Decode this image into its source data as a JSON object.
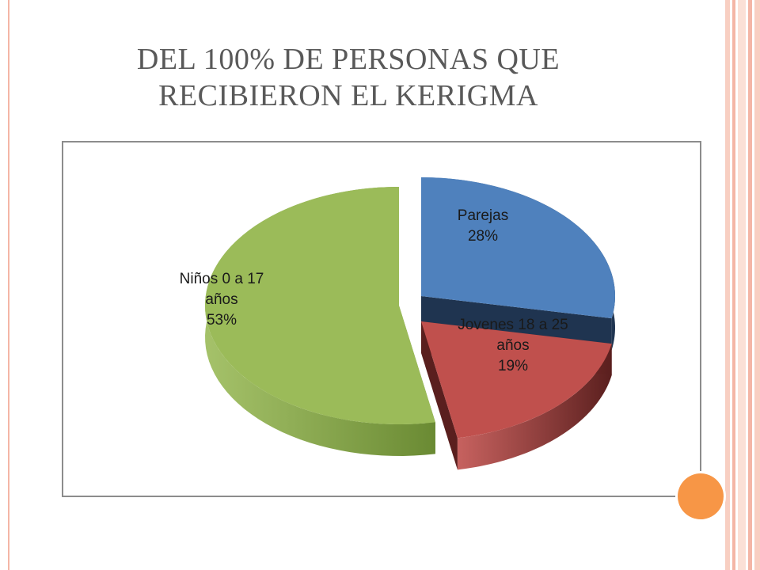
{
  "slide": {
    "title_line1": "DEL 100% DE PERSONAS QUE",
    "title_line2": "RECIBIERON EL KERIGMA"
  },
  "colors": {
    "accent_orange": "#f79646",
    "stripe_pink": "#f4b6a6",
    "frame_border": "#8c8c8c"
  },
  "chart_data": {
    "type": "pie",
    "title": "",
    "slices": [
      {
        "label_lines": [
          "Niños 0 a 17",
          "años",
          "53%"
        ],
        "value": 53,
        "color": "#9bbb59",
        "side_color": "#6a8a33"
      },
      {
        "label_lines": [
          "Parejas",
          "28%"
        ],
        "value": 28,
        "color": "#4f81bd",
        "side_color": "#1f3450"
      },
      {
        "label_lines": [
          "Jovenes 18 a 25",
          "años",
          "19%"
        ],
        "value": 19,
        "color": "#c0504d",
        "side_color": "#5a1f1e"
      }
    ]
  }
}
